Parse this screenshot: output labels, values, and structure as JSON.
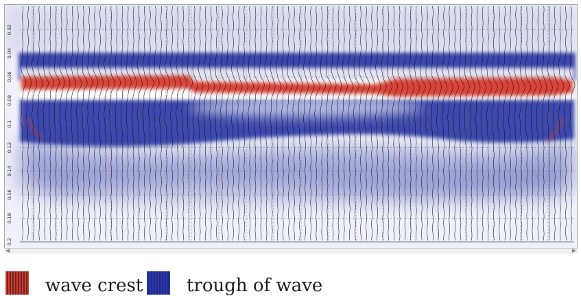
{
  "chart_data": {
    "type": "heatmap",
    "title": "",
    "xlabel": "",
    "ylabel": "",
    "y_ticks": [
      "0.02",
      "0.04",
      "0.06",
      "0.08",
      "0.1",
      "0.12",
      "0.14",
      "0.16",
      "0.18",
      "0.2"
    ],
    "ylim": [
      0.0,
      0.2
    ],
    "trace_count": 100,
    "color_scale": {
      "crest": "#d83a2f",
      "zero": "#ffffff",
      "trough": "#2a38a6"
    },
    "grid": true,
    "legend_position": "bottom"
  },
  "legend": {
    "items": [
      {
        "label": "wave crest",
        "color": "#d83a2f",
        "pattern": "striped"
      },
      {
        "label": "trough of wave",
        "color": "#2a38a6",
        "pattern": "striped"
      }
    ]
  }
}
